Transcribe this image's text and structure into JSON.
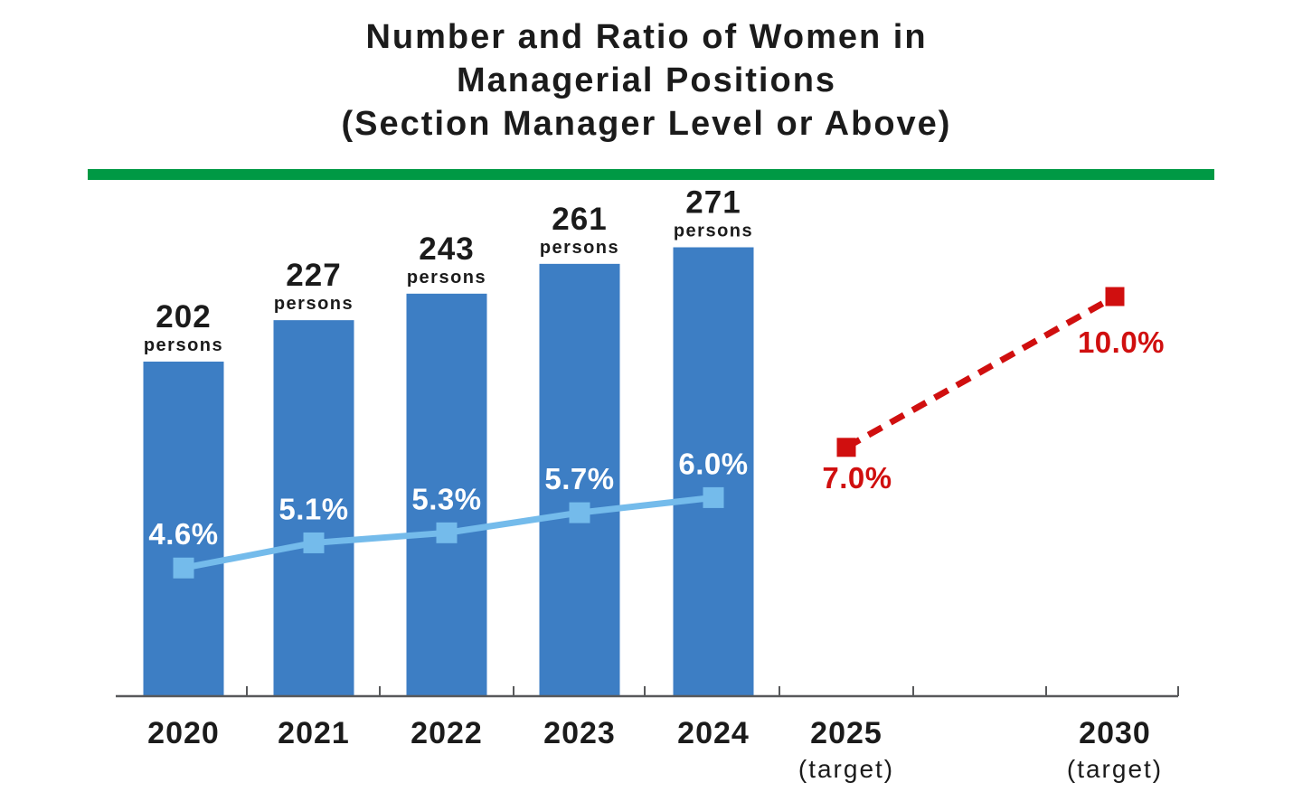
{
  "title": {
    "line1": "Number and Ratio of Women in",
    "line2": "Managerial Positions",
    "line3": "(Section Manager Level or Above)"
  },
  "colors": {
    "bar_blue": "#3d7ec4",
    "ratio_line_blue": "#74bbeb",
    "target_red": "#d00f0f",
    "divider_green": "#009944",
    "value_label_white": "#ffffff",
    "text_dark": "#1b1b1b",
    "axis_gray": "#58595b"
  },
  "chart_data": {
    "type": "bar",
    "combo": "bar + line + dashed target line",
    "grid": false,
    "legend": "none",
    "y_axes_note": "no numeric axis scales shown; bars = persons, lines = percent",
    "categories": [
      "2020",
      "2021",
      "2022",
      "2023",
      "2024",
      "2025",
      "2030"
    ],
    "x_axis": {
      "labels": [
        "2020",
        "2021",
        "2022",
        "2023",
        "2024",
        "2025",
        "2030"
      ],
      "sub_labels": [
        "",
        "",
        "",
        "",
        "",
        "(target)",
        "(target)"
      ]
    },
    "bars": {
      "name": "Number of women in managerial positions",
      "unit_label": "persons",
      "categories": [
        "2020",
        "2021",
        "2022",
        "2023",
        "2024"
      ],
      "values": [
        202,
        227,
        243,
        261,
        271
      ],
      "value_labels": [
        "202",
        "227",
        "243",
        "261",
        "271"
      ]
    },
    "ratio_line": {
      "name": "Ratio of women in managerial positions",
      "style": "solid",
      "marker": "square",
      "categories": [
        "2020",
        "2021",
        "2022",
        "2023",
        "2024"
      ],
      "values": [
        4.6,
        5.1,
        5.3,
        5.7,
        6.0
      ],
      "value_labels": [
        "4.6%",
        "5.1%",
        "5.3%",
        "5.7%",
        "6.0%"
      ]
    },
    "target_line": {
      "name": "Target ratio of women in managerial positions",
      "style": "dashed",
      "marker": "square",
      "categories": [
        "2025",
        "2030"
      ],
      "values": [
        7.0,
        10.0
      ],
      "value_labels": [
        "7.0%",
        "10.0%"
      ]
    }
  }
}
